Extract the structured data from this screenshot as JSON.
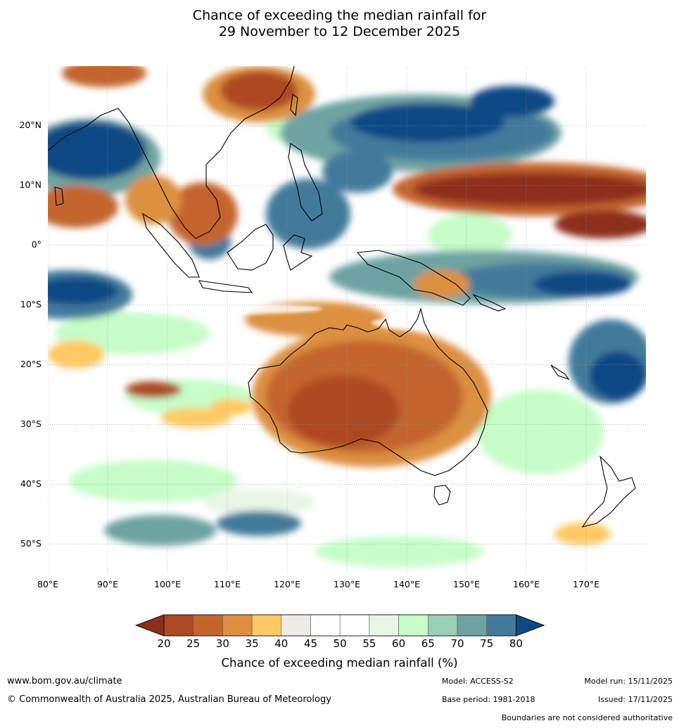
{
  "title": {
    "line1": "Chance of exceeding the median rainfall for",
    "line2": "29 November to 12 December 2025"
  },
  "map": {
    "lon_range": [
      80,
      180
    ],
    "lat_range": [
      -55,
      30
    ],
    "grid": true,
    "lat_ticks": [
      {
        "value": 20,
        "label": "20°N"
      },
      {
        "value": 10,
        "label": "10°N"
      },
      {
        "value": 0,
        "label": "0°"
      },
      {
        "value": -10,
        "label": "10°S"
      },
      {
        "value": -20,
        "label": "20°S"
      },
      {
        "value": -30,
        "label": "30°S"
      },
      {
        "value": -40,
        "label": "40°S"
      },
      {
        "value": -50,
        "label": "50°S"
      }
    ],
    "lon_ticks": [
      {
        "value": 80,
        "label": "80°E"
      },
      {
        "value": 90,
        "label": "90°E"
      },
      {
        "value": 100,
        "label": "100°E"
      },
      {
        "value": 110,
        "label": "110°E"
      },
      {
        "value": 120,
        "label": "120°E"
      },
      {
        "value": 130,
        "label": "130°E"
      },
      {
        "value": 140,
        "label": "140°E"
      },
      {
        "value": 150,
        "label": "150°E"
      },
      {
        "value": 160,
        "label": "160°E"
      },
      {
        "value": 170,
        "label": "170°E"
      }
    ]
  },
  "colorbar": {
    "ticks": [
      "20",
      "25",
      "30",
      "35",
      "40",
      "45",
      "50",
      "55",
      "60",
      "65",
      "70",
      "75",
      "80"
    ],
    "colors": [
      "#ad4a24",
      "#c4652e",
      "#dd9041",
      "#fec964",
      "#eeebe6",
      "#ffffff",
      "#ffffff",
      "#e9f6e6",
      "#c6fdc8",
      "#99cfb5",
      "#6ea3a3",
      "#437a9b"
    ],
    "low_color": "#8e2e1b",
    "high_color": "#0d4a85",
    "label": "Chance of exceeding median rainfall (%)"
  },
  "footer": {
    "website": "www.bom.gov.au/climate",
    "copyright": "© Commonwealth of Australia 2025, Australian Bureau of Meteorology",
    "model": "Model: ACCESS-S2",
    "base_period": "Base period: 1981-2018",
    "model_run": "Model run: 15/11/2025",
    "issued": "Issued: 17/11/2025",
    "disclaimer": "Boundaries are not considered authoritative"
  }
}
